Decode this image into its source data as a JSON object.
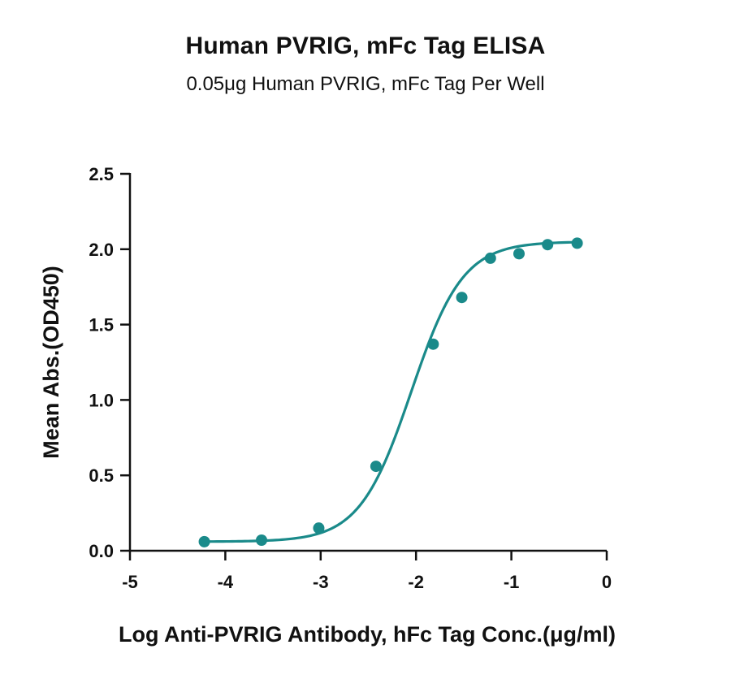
{
  "chart_data": {
    "type": "scatter",
    "title": "Human PVRIG, mFc Tag ELISA",
    "subtitle": "0.05μg Human PVRIG, mFc Tag Per Well",
    "xlabel": "Log Anti-PVRIG Antibody, hFc Tag Conc.(μg/ml)",
    "ylabel": "Mean Abs.(OD450)",
    "xlim": [
      -5,
      0
    ],
    "ylim": [
      0,
      2.5
    ],
    "xticks": [
      -5,
      -4,
      -3,
      -2,
      -1,
      0
    ],
    "xtick_labels": [
      "-5",
      "-4",
      "-3",
      "-2",
      "-1",
      "0"
    ],
    "yticks": [
      0,
      0.5,
      1.0,
      1.5,
      2.0,
      2.5
    ],
    "ytick_labels": [
      "0.0",
      "0.5",
      "1.0",
      "1.5",
      "2.0",
      "2.5"
    ],
    "grid": false,
    "color": "#1a8a8a",
    "series": [
      {
        "x": [
          -4.22,
          -3.62,
          -3.02,
          -2.42,
          -1.82,
          -1.52,
          -1.22,
          -0.92,
          -0.62,
          -0.31
        ],
        "y": [
          0.06,
          0.07,
          0.15,
          0.56,
          1.37,
          1.68,
          1.94,
          1.97,
          2.03,
          2.04
        ],
        "fit": "4PL",
        "fit_params": {
          "bottom": 0.06,
          "top": 2.05,
          "logEC50": -2.05,
          "hill": 1.6
        }
      }
    ]
  }
}
